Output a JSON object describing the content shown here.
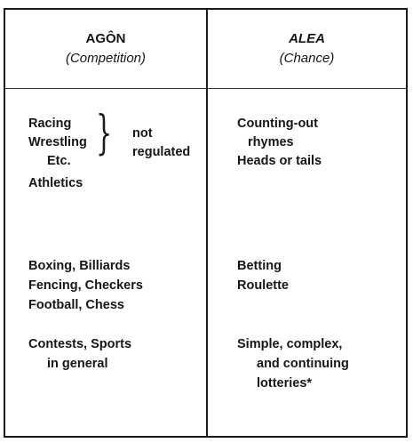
{
  "columns": [
    {
      "title": "AGÔN",
      "subtitle": "(Competition)",
      "groups": [
        {
          "lines": [
            "Racing",
            "Wrestling",
            "Etc.",
            "Athletics"
          ],
          "brace_note": [
            "not",
            "regulated"
          ]
        },
        {
          "lines": [
            "Boxing, Billiards",
            "Fencing, Checkers",
            "Football, Chess"
          ]
        },
        {
          "lines": [
            "Contests, Sports",
            "in general"
          ]
        }
      ]
    },
    {
      "title": "ALEA",
      "subtitle": "(Chance)",
      "groups": [
        {
          "lines": [
            "Counting-out",
            "rhymes",
            "Heads or tails"
          ]
        },
        {
          "lines": [
            "Betting",
            "Roulette"
          ]
        },
        {
          "lines": [
            "Simple, complex,",
            "and continuing",
            "lotteries*"
          ]
        }
      ]
    }
  ]
}
